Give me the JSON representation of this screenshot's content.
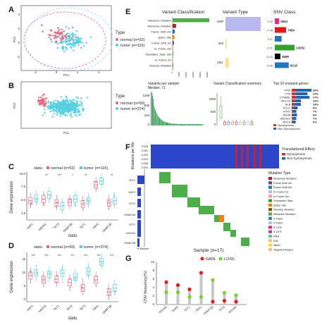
{
  "panels": {
    "A": {
      "label": "A",
      "xlabel": "PC1",
      "ylabel": "PC2",
      "legend_title": "Type",
      "legend": [
        "normal (n=52)",
        "tumor (n=115)"
      ],
      "xticks": [
        "-2",
        "0",
        "2",
        "4"
      ],
      "yticks": [
        "-2",
        "0",
        "2",
        "4"
      ]
    },
    "B": {
      "label": "B",
      "xlabel": "PC1",
      "ylabel": "PC2",
      "legend_title": "Type",
      "legend": [
        "normal (n=50)",
        "tumor (n=374)"
      ]
    },
    "C": {
      "label": "C",
      "ylabel": "Gene expression",
      "xlabel": "statu",
      "legend_title": "statu",
      "legend": [
        "normal (n=52)",
        "tumor (n=115)"
      ],
      "genes": [
        "NSP1",
        "NSUN2",
        "TET3",
        "DNMT3B",
        "TET1",
        "YBX1",
        "DNMT3B"
      ],
      "sig": [
        "",
        "**",
        "***",
        "*",
        "**",
        "",
        "**"
      ],
      "yticks": [
        "2.5",
        "5.0",
        "7.5",
        "10.0"
      ]
    },
    "D": {
      "label": "D",
      "ylabel": "Gene expression",
      "xlabel": "statu",
      "legend_title": "statu",
      "legend": [
        "normal (n=50)",
        "tumor (n=374)"
      ],
      "genes": [
        "NSP1",
        "NSUN2",
        "TET1",
        "TET2",
        "TET3",
        "YBX1",
        "DNMT3B"
      ],
      "sig": [
        "***",
        "***",
        "***",
        "***",
        "***",
        "***",
        "***"
      ],
      "yticks": [
        "0",
        "5",
        "10",
        "15"
      ]
    },
    "E": {
      "label": "E",
      "variant_classification": {
        "title": "Variant Classification",
        "categories": [
          "Missense_Mutation",
          "Nonsense_Mutation",
          "Frame_Shift_Del",
          "Splice_Site",
          "Frame_Shift_Ins",
          "In_Frame_Del",
          "Translation_Start_Site",
          "In_Frame_Ins",
          "Nonstop_Mutation"
        ],
        "values": [
          26000,
          2400,
          1600,
          1300,
          900,
          500,
          200,
          150,
          50
        ],
        "xticks": [
          "0",
          "5000",
          "10000",
          "15000",
          "20000",
          "25000"
        ]
      },
      "variant_type": {
        "title": "Variant Type",
        "categories": [
          "SNP",
          "INS",
          "DEL"
        ],
        "values": [
          26000,
          900,
          2400
        ]
      },
      "snv_class": {
        "title": "SNV Class",
        "categories": [
          "T>G",
          "T>A",
          "T>C",
          "C>T",
          "C>G",
          "C>A"
        ],
        "values": [
          2843,
          7450,
          4500,
          13032,
          3659,
          9218
        ],
        "labels": [
          "2843",
          "7450",
          "",
          "13032",
          "3659",
          "9218"
        ]
      },
      "variants_per_sample": {
        "title": "Variants per sample",
        "subtitle": "Median: 71",
        "yticks": [
          "0",
          "423",
          "846",
          "1269"
        ]
      },
      "variant_summary": {
        "title": "Variant Classification summary",
        "yticks": [
          "0",
          "500",
          "1000"
        ]
      },
      "top10": {
        "title": "Top 10 mutated genes",
        "genes": [
          "TP53",
          "TTN",
          "CTNNB1",
          "MUC16",
          "ALB",
          "PCLO",
          "RYR2",
          "APOB",
          "ABCA13",
          "MUC4"
        ],
        "percents": [
          "30%",
          "24%",
          "27%",
          "14%",
          "14%",
          "9%",
          "7%",
          "8%",
          "7%",
          "6%"
        ],
        "values": [
          30,
          24,
          27,
          14,
          14,
          9,
          7,
          8,
          7,
          6
        ],
        "legend": [
          "Synonymous",
          "Non Synonymous"
        ]
      }
    },
    "F": {
      "label": "F",
      "ylabel": "Mutations per Mb",
      "yticks": [
        "0.025",
        "0.020",
        "0.015",
        "0.010",
        "0.005",
        "0.000"
      ],
      "genes": [
        "TET1",
        "NSP1",
        "TET3",
        "DNMT3A",
        "TET2",
        "NSUN2",
        "DNMT3B"
      ],
      "xaxis": "% Mutant",
      "xlabel": "Sample (n=17)",
      "effect_title": "Translational Effect",
      "effect_legend": [
        "Synonymous",
        "Non Synonymous"
      ],
      "type_title": "Mutation Type",
      "mutation_types": [
        {
          "name": "Nonsense Mutation",
          "color": "#b2182b"
        },
        {
          "name": "Frame Shift Ins",
          "color": "#6a3d9a"
        },
        {
          "name": "Frame Shift Del",
          "color": "#1f78b4"
        },
        {
          "name": "In Frame Ins",
          "color": "#cab2d6"
        },
        {
          "name": "In Frame Del",
          "color": "#fb9a99"
        },
        {
          "name": "Translation Start",
          "color": "#33a02c"
        },
        {
          "name": "Splice Site",
          "color": "#ff7f00"
        },
        {
          "name": "Nonstop Mutation",
          "color": "#8c510a"
        },
        {
          "name": "Missense Mutation",
          "color": "#4daf4a"
        },
        {
          "name": "3' Flank",
          "color": "#377eb8"
        },
        {
          "name": "5' Flank",
          "color": "#a6cee3"
        },
        {
          "name": "3' UTR",
          "color": "#e7298a"
        },
        {
          "name": "5' UTR",
          "color": "#984ea3"
        },
        {
          "name": "RNA",
          "color": "#66c2a5"
        },
        {
          "name": "IGR",
          "color": "#fdbf6f"
        },
        {
          "name": "Silent",
          "color": "#ffd92f"
        },
        {
          "name": "Targeted Region",
          "color": "#e5c494"
        }
      ]
    },
    "G": {
      "label": "G",
      "ylabel": "CNV frequency(%)",
      "legend": [
        "GAIN",
        "LOSS"
      ],
      "yticks": [
        "0",
        "2",
        "4",
        "6",
        "8",
        "10"
      ],
      "genes": [
        "NSUN2",
        "NSP2",
        "TET1",
        "YBX1",
        "DNMT3B",
        "TET3",
        "NSUN6"
      ]
    }
  },
  "chart_data": [
    {
      "type": "scatter",
      "panel": "A",
      "xlabel": "PC1",
      "ylabel": "PC2",
      "xlim": [
        -4,
        4.5
      ],
      "ylim": [
        -4,
        5
      ],
      "series": [
        {
          "name": "normal (n=52)"
        },
        {
          "name": "tumor (n=115)"
        }
      ]
    },
    {
      "type": "scatter",
      "panel": "B",
      "xlabel": "PC1",
      "ylabel": "PC2",
      "series": [
        {
          "name": "normal (n=50)"
        },
        {
          "name": "tumor (n=374)"
        }
      ]
    },
    {
      "type": "box",
      "panel": "C",
      "ylabel": "Gene expression",
      "ylim": [
        1,
        10
      ],
      "categories": [
        "NSP1",
        "NSUN2",
        "TET3",
        "DNMT3B",
        "TET1",
        "YBX1",
        "DNMT3B"
      ],
      "series": [
        {
          "name": "normal (n=52)",
          "values": [
            4.6,
            4.9,
            4.2,
            4.3,
            4.0,
            7.6,
            4.2
          ]
        },
        {
          "name": "tumor (n=115)",
          "values": [
            5.1,
            5.7,
            3.6,
            4.9,
            4.6,
            8.3,
            4.6
          ]
        }
      ]
    },
    {
      "type": "box",
      "panel": "D",
      "ylabel": "Gene expression",
      "ylim": [
        -1,
        17
      ],
      "categories": [
        "NSP1",
        "NSUN2",
        "TET1",
        "TET2",
        "TET3",
        "YBX1",
        "DNMT3B"
      ],
      "series": [
        {
          "name": "normal (n=50)",
          "values": [
            8.5,
            7.0,
            7.2,
            6.0,
            4.0,
            7.0,
            2.5
          ]
        },
        {
          "name": "tumor (n=374)",
          "values": [
            9.5,
            9.0,
            9.5,
            8.0,
            10.0,
            13.5,
            4.0
          ]
        }
      ]
    },
    {
      "type": "bar",
      "panel": "E",
      "title": "Variant Classification",
      "categories": [
        "Missense_Mutation",
        "Nonsense_Mutation",
        "Frame_Shift_Del",
        "Splice_Site",
        "Frame_Shift_Ins",
        "In_Frame_Del",
        "Translation_Start_Site",
        "In_Frame_Ins",
        "Nonstop_Mutation"
      ],
      "values": [
        26000,
        2400,
        1600,
        1300,
        900,
        500,
        200,
        150,
        50
      ]
    },
    {
      "type": "bar",
      "panel": "E",
      "title": "SNV Class",
      "categories": [
        "T>G",
        "T>A",
        "T>C",
        "C>T",
        "C>G",
        "C>A"
      ],
      "values": [
        2843,
        7450,
        4500,
        13032,
        3659,
        9218
      ]
    },
    {
      "type": "bar",
      "panel": "E",
      "title": "Top 10 mutated genes",
      "categories": [
        "TP53",
        "TTN",
        "CTNNB1",
        "MUC16",
        "ALB",
        "PCLO",
        "RYR2",
        "APOB",
        "ABCA13",
        "MUC4"
      ],
      "values": [
        30,
        24,
        27,
        14,
        14,
        9,
        7,
        8,
        7,
        6
      ]
    },
    {
      "type": "bar",
      "panel": "G",
      "ylabel": "CNV frequency(%)",
      "ylim": [
        0,
        10
      ],
      "categories": [
        "NSUN2",
        "NSP2",
        "TET1",
        "YBX1",
        "DNMT3B",
        "TET3",
        "NSUN6"
      ],
      "series": [
        {
          "name": "GAIN",
          "values": [
            5.3,
            4.6,
            3.6,
            7.5,
            0.7,
            0.9,
            0.7
          ]
        },
        {
          "name": "LOSS",
          "values": [
            2.9,
            2.9,
            1.8,
            1.8,
            5.8,
            2.8,
            2.2
          ]
        }
      ]
    }
  ]
}
